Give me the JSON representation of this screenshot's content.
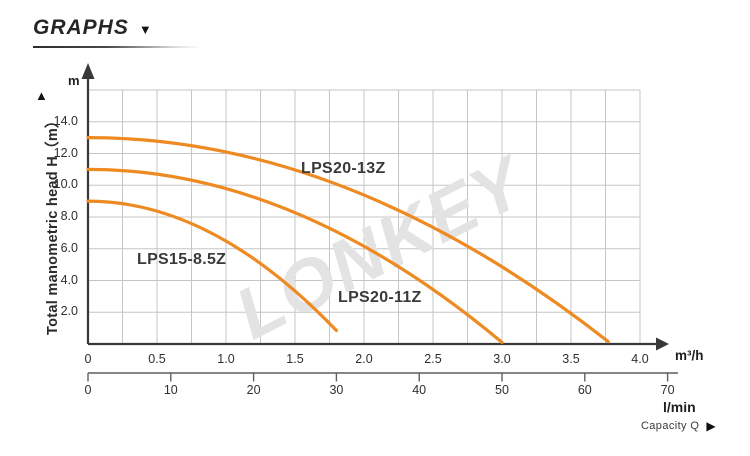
{
  "header": {
    "title": "GRAPHS",
    "dropdown_icon": "▼"
  },
  "markers": {
    "left_triangle_icon": "▲"
  },
  "chart_data": {
    "type": "line",
    "title": "",
    "watermark": "LONKEY",
    "curve_color": "#ED8A22",
    "grid_color": "#c5c5c5",
    "axis_color": "#383838",
    "y_axis": {
      "label": "Total manometric head H（m）",
      "unit": "m",
      "ticks": [
        "2.0",
        "4.0",
        "6.0",
        "8.0",
        "10.0",
        "12.0",
        "14.0"
      ],
      "range": [
        0,
        16
      ],
      "grid_step": 2,
      "grid": "on"
    },
    "x_axis_primary": {
      "unit": "m³/h",
      "ticks": [
        "0",
        "0.5",
        "1.0",
        "1.5",
        "2.0",
        "2.5",
        "3.0",
        "3.5",
        "4.0"
      ],
      "range": [
        0,
        4
      ],
      "grid_step": 0.25,
      "grid": "on"
    },
    "x_axis_secondary": {
      "unit": "l/min",
      "ticks": [
        "0",
        "10",
        "20",
        "30",
        "40",
        "50",
        "60",
        "70"
      ],
      "range": [
        0,
        71.5
      ]
    },
    "caption": {
      "text": "Capacity Q",
      "arrow_icon": "▶"
    },
    "series": [
      {
        "name": "LPS20-13Z",
        "points": [
          [
            0,
            13.0
          ],
          [
            1.0,
            11.8
          ],
          [
            2.0,
            9.4
          ],
          [
            3.0,
            4.7
          ],
          [
            3.77,
            0.15
          ]
        ]
      },
      {
        "name": "LPS20-11Z",
        "points": [
          [
            0,
            11.0
          ],
          [
            1.0,
            9.8
          ],
          [
            2.0,
            6.0
          ],
          [
            3.0,
            0.1
          ]
        ]
      },
      {
        "name": "LPS15-8.5Z",
        "points": [
          [
            0,
            9.0
          ],
          [
            0.75,
            7.3
          ],
          [
            1.5,
            3.8
          ],
          [
            1.8,
            0.85
          ]
        ]
      }
    ],
    "legend": "none"
  }
}
